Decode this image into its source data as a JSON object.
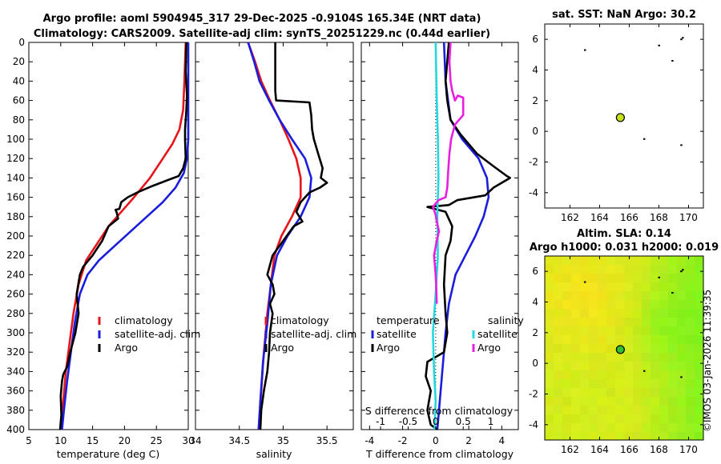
{
  "titles": {
    "line1": "Argo profile: aoml 5904945_317 29-Dec-2025 -0.9104S 165.34E (NRT data)",
    "line2": "Climatology: CARS2009. Satellite-adj clim: synTS_20251229.nc (0.44d earlier)"
  },
  "timestamp": "©IMOS 03-Jan-2026 11:39:35",
  "colors": {
    "climatology": "#e8141b",
    "satellite": "#1b1ddc",
    "argo": "#000000",
    "sal_satellite": "#22d8e0",
    "sal_argo": "#e81ee0",
    "map_bg": "#d4ec1c"
  },
  "chart_data": [
    {
      "type": "line",
      "name": "temperature-profile",
      "xlabel": "temperature (deg C)",
      "ylabel": "",
      "xlim": [
        5,
        30
      ],
      "ylim": [
        400,
        0
      ],
      "xticks": [
        "5",
        "10",
        "15",
        "20",
        "25",
        "30"
      ],
      "yticks": [
        "0",
        "20",
        "40",
        "60",
        "80",
        "100",
        "120",
        "140",
        "160",
        "180",
        "200",
        "220",
        "240",
        "260",
        "280",
        "300",
        "320",
        "340",
        "360",
        "380",
        "400"
      ],
      "legend": [
        "climatology",
        "satellite-adj. clim",
        "Argo"
      ],
      "series": [
        {
          "name": "climatology",
          "color_key": "climatology",
          "points": [
            [
              29.6,
              0
            ],
            [
              29.4,
              40
            ],
            [
              29.2,
              70
            ],
            [
              28.6,
              90
            ],
            [
              27.5,
              105
            ],
            [
              26,
              120
            ],
            [
              24,
              140
            ],
            [
              21.5,
              160
            ],
            [
              19.5,
              175
            ],
            [
              17.5,
              190
            ],
            [
              15.5,
              210
            ],
            [
              14,
              225
            ],
            [
              12.8,
              250
            ],
            [
              12,
              280
            ],
            [
              11.4,
              310
            ],
            [
              10.8,
              340
            ],
            [
              10.4,
              370
            ],
            [
              10.1,
              400
            ]
          ]
        },
        {
          "name": "satellite-adj. clim",
          "color_key": "satellite",
          "points": [
            [
              30,
              0
            ],
            [
              30,
              50
            ],
            [
              30,
              100
            ],
            [
              29.8,
              120
            ],
            [
              29.3,
              135
            ],
            [
              28,
              150
            ],
            [
              26,
              165
            ],
            [
              23.5,
              180
            ],
            [
              21,
              195
            ],
            [
              18.5,
              210
            ],
            [
              16,
              225
            ],
            [
              14.2,
              240
            ],
            [
              13,
              260
            ],
            [
              12.2,
              290
            ],
            [
              11.6,
              320
            ],
            [
              11,
              350
            ],
            [
              10.5,
              380
            ],
            [
              10.2,
              400
            ]
          ]
        },
        {
          "name": "Argo",
          "color_key": "argo",
          "points": [
            [
              29.7,
              0
            ],
            [
              29.6,
              30
            ],
            [
              29.8,
              55
            ],
            [
              29.7,
              70
            ],
            [
              29.5,
              90
            ],
            [
              29.5,
              100
            ],
            [
              29.6,
              120
            ],
            [
              29.2,
              130
            ],
            [
              28.5,
              138
            ],
            [
              26.5,
              143
            ],
            [
              24.5,
              148
            ],
            [
              22,
              155
            ],
            [
              20.5,
              160
            ],
            [
              19.5,
              165
            ],
            [
              19.2,
              172
            ],
            [
              18.6,
              173
            ],
            [
              18.8,
              176
            ],
            [
              19,
              182
            ],
            [
              17.5,
              190
            ],
            [
              16.5,
              205
            ],
            [
              15,
              220
            ],
            [
              13.5,
              232
            ],
            [
              13,
              240
            ],
            [
              12.5,
              260
            ],
            [
              12.8,
              280
            ],
            [
              12.3,
              300
            ],
            [
              11.5,
              320
            ],
            [
              11,
              335
            ],
            [
              10.4,
              343
            ],
            [
              10.2,
              350
            ],
            [
              10,
              365
            ],
            [
              10.1,
              385
            ],
            [
              9.9,
              400
            ]
          ]
        }
      ]
    },
    {
      "type": "line",
      "name": "salinity-profile",
      "xlabel": "salinity",
      "xlim": [
        34,
        35.8
      ],
      "ylim": [
        400,
        0
      ],
      "xticks": [
        "34",
        "34.5",
        "35",
        "35.5"
      ],
      "legend": [
        "climatology",
        "satellite-adj. clim",
        "Argo"
      ],
      "series": [
        {
          "name": "climatology",
          "color_key": "climatology",
          "points": [
            [
              34.6,
              0
            ],
            [
              34.68,
              20
            ],
            [
              34.75,
              40
            ],
            [
              34.85,
              60
            ],
            [
              34.96,
              80
            ],
            [
              35.06,
              100
            ],
            [
              35.15,
              120
            ],
            [
              35.2,
              140
            ],
            [
              35.2,
              160
            ],
            [
              35.1,
              180
            ],
            [
              34.98,
              200
            ],
            [
              34.9,
              220
            ],
            [
              34.86,
              250
            ],
            [
              34.82,
              280
            ],
            [
              34.78,
              320
            ],
            [
              34.75,
              360
            ],
            [
              34.72,
              400
            ]
          ]
        },
        {
          "name": "satellite-adj. clim",
          "color_key": "satellite",
          "points": [
            [
              34.6,
              0
            ],
            [
              34.67,
              20
            ],
            [
              34.73,
              40
            ],
            [
              34.84,
              60
            ],
            [
              34.96,
              80
            ],
            [
              35.1,
              100
            ],
            [
              35.25,
              120
            ],
            [
              35.32,
              140
            ],
            [
              35.3,
              160
            ],
            [
              35.2,
              180
            ],
            [
              35.05,
              200
            ],
            [
              34.93,
              220
            ],
            [
              34.86,
              250
            ],
            [
              34.82,
              290
            ],
            [
              34.77,
              330
            ],
            [
              34.74,
              370
            ],
            [
              34.72,
              400
            ]
          ]
        },
        {
          "name": "Argo",
          "color_key": "argo",
          "points": [
            [
              34.91,
              0
            ],
            [
              34.91,
              20
            ],
            [
              34.91,
              50
            ],
            [
              34.92,
              60
            ],
            [
              35.3,
              62
            ],
            [
              35.32,
              75
            ],
            [
              35.33,
              90
            ],
            [
              35.35,
              100
            ],
            [
              35.4,
              115
            ],
            [
              35.45,
              130
            ],
            [
              35.43,
              140
            ],
            [
              35.5,
              145
            ],
            [
              35.42,
              150
            ],
            [
              35.3,
              155
            ],
            [
              35.2,
              165
            ],
            [
              35.15,
              175
            ],
            [
              35.22,
              185
            ],
            [
              35.12,
              190
            ],
            [
              35.0,
              205
            ],
            [
              34.88,
              220
            ],
            [
              34.82,
              240
            ],
            [
              34.88,
              250
            ],
            [
              34.9,
              260
            ],
            [
              34.85,
              270
            ],
            [
              34.88,
              280
            ],
            [
              34.85,
              300
            ],
            [
              34.84,
              320
            ],
            [
              34.82,
              340
            ],
            [
              34.78,
              360
            ],
            [
              34.75,
              380
            ],
            [
              34.74,
              400
            ]
          ]
        }
      ]
    },
    {
      "type": "line",
      "name": "difference-profile",
      "xlabel": "T difference from climatology",
      "x2label": "S difference from climatology",
      "xlim": [
        -4.5,
        5
      ],
      "x2lim": [
        -1.35,
        1.5
      ],
      "ylim": [
        400,
        0
      ],
      "xticks": [
        "-4",
        "-2",
        "0",
        "2",
        "4"
      ],
      "x2ticks": [
        "-1",
        "-0.5",
        "0",
        "0.5",
        "1"
      ],
      "legend_left_title": "temperature",
      "legend_right_title": "salinity",
      "legend_left": [
        "satellite",
        "Argo"
      ],
      "legend_right": [
        "satellite",
        "Argo"
      ],
      "series": [
        {
          "name": "T satellite",
          "axis": "T",
          "color_key": "satellite",
          "points": [
            [
              0.5,
              0
            ],
            [
              0.6,
              40
            ],
            [
              0.9,
              80
            ],
            [
              1.6,
              100
            ],
            [
              2.6,
              120
            ],
            [
              3.1,
              140
            ],
            [
              3.2,
              160
            ],
            [
              2.9,
              180
            ],
            [
              2.4,
              200
            ],
            [
              1.8,
              220
            ],
            [
              1.2,
              240
            ],
            [
              0.8,
              270
            ],
            [
              0.6,
              300
            ],
            [
              0.4,
              340
            ],
            [
              0.2,
              380
            ],
            [
              0.1,
              400
            ]
          ]
        },
        {
          "name": "T Argo",
          "axis": "T",
          "color_key": "argo",
          "points": [
            [
              0.8,
              0
            ],
            [
              0.7,
              20
            ],
            [
              0.6,
              40
            ],
            [
              0.7,
              60
            ],
            [
              0.9,
              80
            ],
            [
              1.5,
              95
            ],
            [
              2.5,
              115
            ],
            [
              3.5,
              128
            ],
            [
              4.3,
              138
            ],
            [
              4.5,
              140
            ],
            [
              3.5,
              150
            ],
            [
              3,
              158
            ],
            [
              1.3,
              163
            ],
            [
              0.8,
              168
            ],
            [
              -0.5,
              170
            ],
            [
              0.6,
              175
            ],
            [
              1,
              190
            ],
            [
              0.9,
              205
            ],
            [
              0.6,
              220
            ],
            [
              0.5,
              250
            ],
            [
              0.6,
              280
            ],
            [
              0.7,
              300
            ],
            [
              0.5,
              320
            ],
            [
              -0.5,
              330
            ],
            [
              -0.6,
              345
            ],
            [
              -0.3,
              360
            ],
            [
              -0.5,
              380
            ],
            [
              -0.3,
              395
            ],
            [
              0.1,
              400
            ]
          ]
        },
        {
          "name": "S satellite",
          "axis": "S",
          "color_key": "sal_satellite",
          "points": [
            [
              0,
              0
            ],
            [
              0.01,
              30
            ],
            [
              0.02,
              60
            ],
            [
              0.04,
              100
            ],
            [
              0.05,
              140
            ],
            [
              0.03,
              180
            ],
            [
              0.04,
              220
            ],
            [
              0,
              260
            ],
            [
              -0.05,
              300
            ],
            [
              -0.03,
              340
            ],
            [
              0,
              370
            ],
            [
              -0.02,
              400
            ]
          ]
        },
        {
          "name": "S Argo",
          "axis": "S",
          "color_key": "sal_argo",
          "points": [
            [
              0.27,
              0
            ],
            [
              0.25,
              20
            ],
            [
              0.27,
              40
            ],
            [
              0.3,
              50
            ],
            [
              0.35,
              60
            ],
            [
              0.4,
              55
            ],
            [
              0.5,
              57
            ],
            [
              0.5,
              75
            ],
            [
              0.35,
              85
            ],
            [
              0.28,
              100
            ],
            [
              0.25,
              115
            ],
            [
              0.23,
              130
            ],
            [
              0.21,
              150
            ],
            [
              0.18,
              160
            ],
            [
              0.05,
              163
            ],
            [
              -0.05,
              170
            ],
            [
              0,
              178
            ],
            [
              0.02,
              185
            ],
            [
              0.06,
              195
            ],
            [
              0.02,
              205
            ],
            [
              -0.03,
              220
            ],
            [
              0,
              240
            ],
            [
              0.01,
              250
            ],
            [
              0.02,
              270
            ]
          ]
        }
      ]
    },
    {
      "type": "scatter",
      "name": "sst-map",
      "title": "sat. SST: NaN Argo: 30.2",
      "xlim": [
        160.3,
        171
      ],
      "ylim": [
        -5,
        7
      ],
      "xticks": [
        "162",
        "164",
        "166",
        "168",
        "170"
      ],
      "yticks": [
        "-4",
        "-2",
        "0",
        "2",
        "4",
        "6"
      ],
      "profile_point": [
        165.4,
        0.9
      ]
    },
    {
      "type": "heatmap",
      "name": "sla-map",
      "title_line1": "Altim. SLA: 0.14",
      "title_line2": "Argo h1000: 0.031 h2000: 0.019",
      "xlim": [
        160.3,
        171
      ],
      "ylim": [
        -5,
        7
      ],
      "xticks": [
        "162",
        "164",
        "166",
        "168",
        "170"
      ],
      "yticks": [
        "-4",
        "-2",
        "0",
        "2",
        "4",
        "6"
      ],
      "profile_point": [
        165.4,
        0.9
      ]
    }
  ]
}
